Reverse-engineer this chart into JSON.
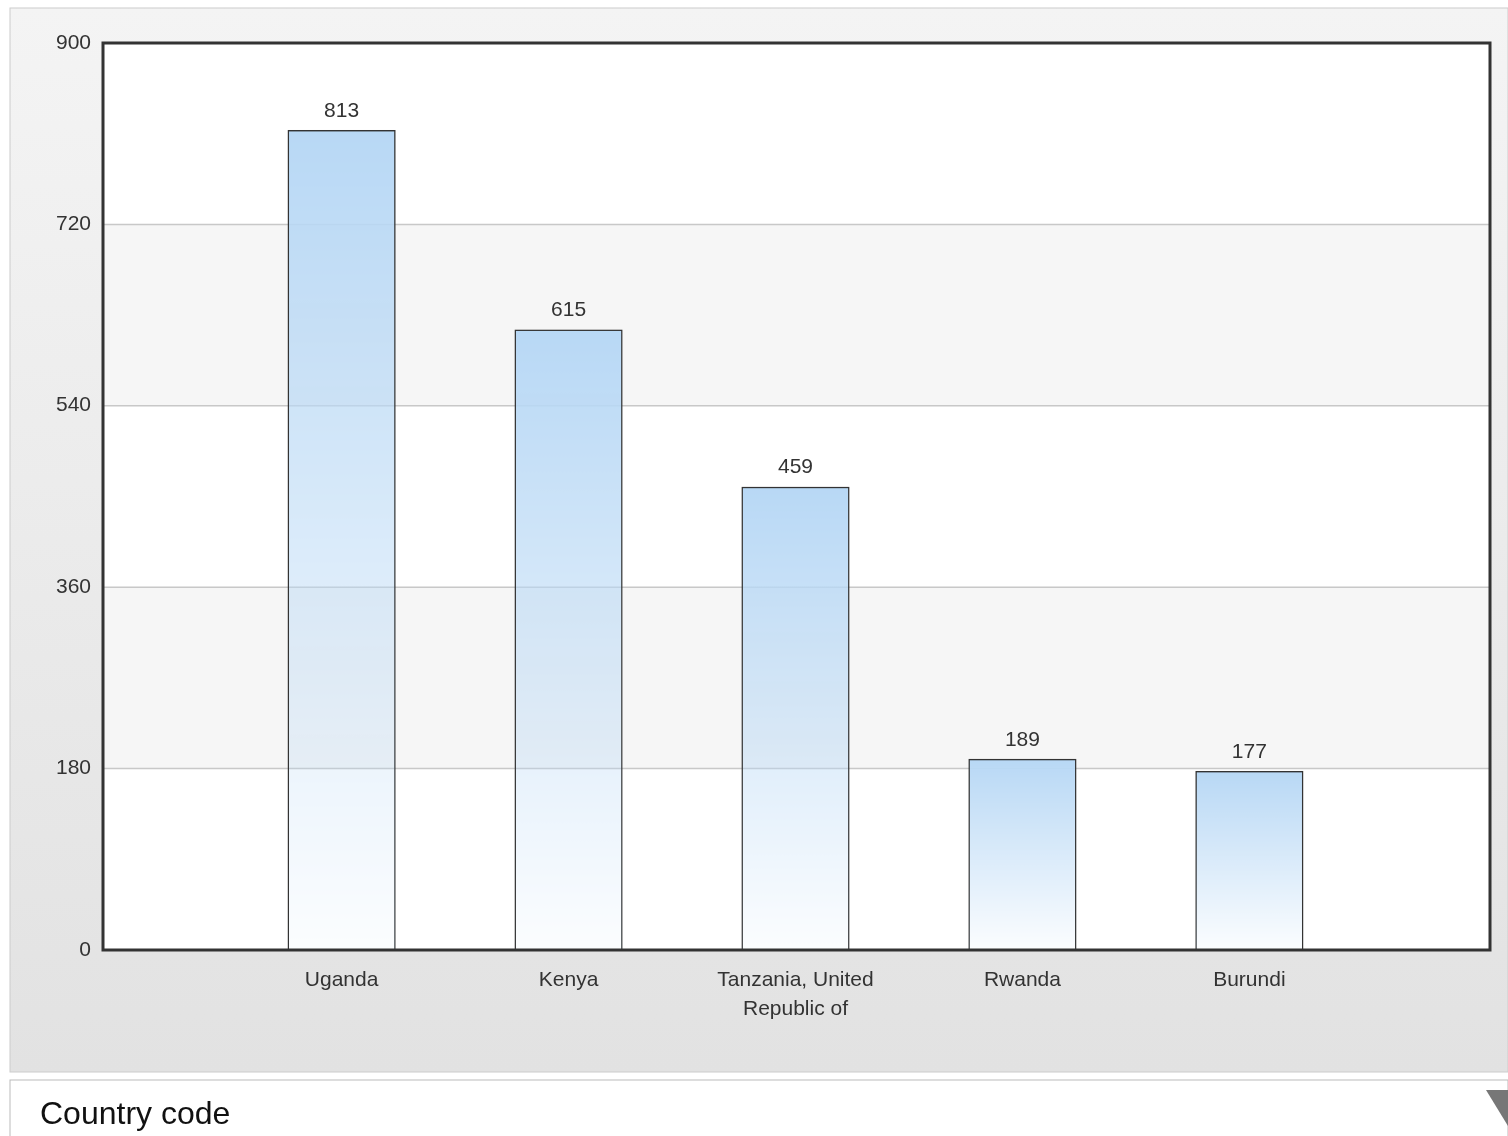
{
  "chart_data": {
    "type": "bar",
    "xlabel": "Country code",
    "categories": [
      "Uganda",
      "Kenya",
      "Tanzania, United Republic of",
      "Rwanda",
      "Burundi"
    ],
    "values": [
      813,
      615,
      459,
      189,
      177
    ],
    "color": "#b8d8f5",
    "ylim": [
      0,
      900
    ],
    "yticks": [
      0,
      180,
      360,
      540,
      720,
      900
    ],
    "grid": "y",
    "data_labels": true
  }
}
